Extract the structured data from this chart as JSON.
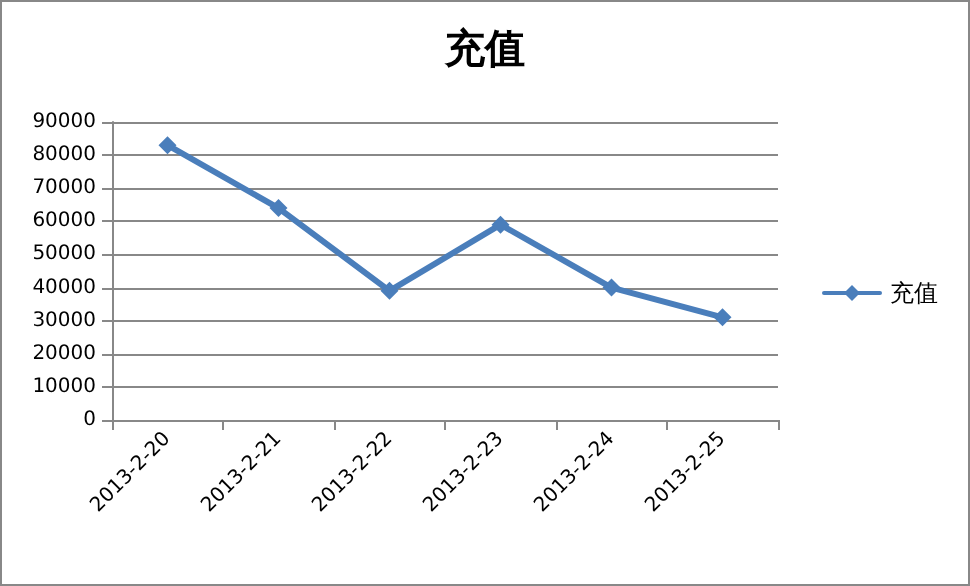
{
  "chart_data": {
    "type": "line",
    "title": "充值",
    "categories": [
      "2013-2-20",
      "2013-2-21",
      "2013-2-22",
      "2013-2-23",
      "2013-2-24",
      "2013-2-25"
    ],
    "series": [
      {
        "name": "充值",
        "color": "#4a7ebb",
        "values": [
          83000,
          64000,
          39000,
          59000,
          40000,
          31000
        ]
      }
    ],
    "ylim": [
      0,
      90000
    ],
    "yticks": [
      0,
      10000,
      20000,
      30000,
      40000,
      50000,
      60000,
      70000,
      80000,
      90000
    ],
    "grid": "y",
    "legend": "right",
    "marker": "diamond",
    "line_style": "solid"
  }
}
